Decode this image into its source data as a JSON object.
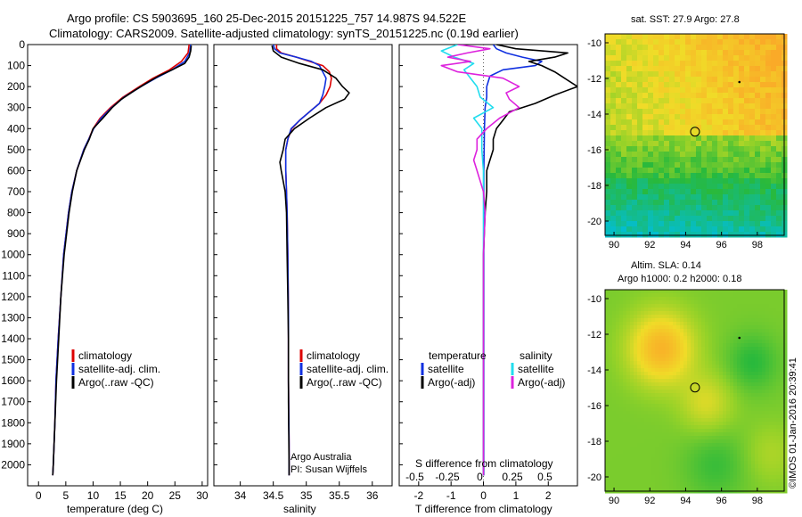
{
  "header": {
    "line1": "Argo profile: CS 5903695_160 25-Dec-2015 20151225_757 14.987S 94.522E",
    "line2": "Climatology: CARS2009. Satellite-adjusted climatology: synTS_20151225.nc (0.19d earlier)"
  },
  "depth_ticks": [
    "0",
    "100",
    "200",
    "300",
    "400",
    "500",
    "600",
    "700",
    "800",
    "900",
    "1000",
    "1100",
    "1200",
    "1300",
    "1400",
    "1500",
    "1600",
    "1700",
    "1800",
    "1900",
    "2000"
  ],
  "colors": {
    "climatology": "#dd0000",
    "satellite": "#1030e0",
    "argo": "#000000",
    "cyan": "#22ddee",
    "magenta": "#dd22dd"
  },
  "chart_data": [
    {
      "type": "line",
      "xlabel": "temperature (deg C)",
      "ylabel": "",
      "xlim": [
        -2,
        31
      ],
      "ylim": [
        2100,
        0
      ],
      "xticks": [
        "0",
        "5",
        "10",
        "15",
        "20",
        "25",
        "30"
      ],
      "legend": [
        "climatology",
        "satellite-adj. clim.",
        "Argo(..raw -QC)"
      ],
      "legend_position": "lower-left",
      "series": [
        {
          "name": "climatology",
          "color": "#dd0000",
          "depth": [
            0,
            40,
            80,
            120,
            160,
            200,
            250,
            300,
            350,
            400,
            450,
            500,
            600,
            700,
            800,
            1000,
            1200,
            1400,
            1600,
            1800,
            2000,
            2050
          ],
          "values": [
            27.6,
            27.4,
            26.2,
            24,
            21,
            18.5,
            15.5,
            13.2,
            11.3,
            10,
            9.2,
            8.3,
            7,
            6.1,
            5.5,
            4.6,
            4.1,
            3.6,
            3.2,
            3,
            2.7,
            2.6
          ]
        },
        {
          "name": "satellite-adj. clim.",
          "color": "#1030e0",
          "depth": [
            0,
            40,
            80,
            120,
            160,
            200,
            250,
            300,
            350,
            400,
            450,
            500,
            600,
            700,
            800,
            1000,
            1200,
            1400,
            1600,
            1800,
            2000,
            2050
          ],
          "values": [
            27.9,
            27.7,
            26.8,
            24.5,
            21.5,
            18.8,
            15.7,
            13.4,
            11.5,
            10.1,
            9.2,
            8.3,
            7,
            6.1,
            5.5,
            4.6,
            4.1,
            3.6,
            3.2,
            3,
            2.7,
            2.6
          ]
        },
        {
          "name": "Argo(..raw -QC)",
          "color": "#000000",
          "depth": [
            5,
            30,
            60,
            90,
            120,
            150,
            180,
            220,
            260,
            300,
            350,
            400,
            450,
            500,
            600,
            700,
            800,
            1000,
            1200,
            1400,
            1600,
            1800,
            2000,
            2050
          ],
          "values": [
            28,
            27.9,
            27.6,
            26.8,
            24.5,
            22,
            20,
            17.5,
            15.2,
            13.5,
            11.8,
            10,
            9.3,
            8.4,
            7,
            6.2,
            5.6,
            4.7,
            4.1,
            3.7,
            3.3,
            3,
            2.7,
            2.6
          ]
        }
      ]
    },
    {
      "type": "line",
      "xlabel": "salinity",
      "ylabel": "",
      "xlim": [
        33.6,
        36.3
      ],
      "ylim": [
        2100,
        0
      ],
      "xticks": [
        "34",
        "34.5",
        "35",
        "35.5",
        "36"
      ],
      "legend": [
        "climatology",
        "satellite-adj. clim.",
        "Argo(..raw -QC)"
      ],
      "legend_position": "lower-right",
      "annotations": [
        "Argo Australia",
        "PI: Susan Wijffels"
      ],
      "series": [
        {
          "name": "climatology",
          "color": "#dd0000",
          "depth": [
            0,
            20,
            40,
            60,
            80,
            100,
            130,
            160,
            200,
            240,
            280,
            320,
            360,
            400,
            450,
            500,
            600,
            700,
            800,
            1000,
            1300,
            1600,
            1900,
            2050
          ],
          "values": [
            34.55,
            34.55,
            34.62,
            34.85,
            35.05,
            35.25,
            35.35,
            35.38,
            35.36,
            35.3,
            35.2,
            35.05,
            34.9,
            34.78,
            34.72,
            34.69,
            34.69,
            34.7,
            34.71,
            34.72,
            34.73,
            34.73,
            34.74,
            34.74
          ]
        },
        {
          "name": "satellite-adj. clim.",
          "color": "#1030e0",
          "depth": [
            0,
            20,
            40,
            60,
            80,
            100,
            130,
            160,
            200,
            240,
            280,
            320,
            360,
            400,
            450,
            500,
            600,
            700,
            800,
            1000,
            1300,
            1600,
            1900,
            2050
          ],
          "values": [
            34.5,
            34.52,
            34.6,
            34.85,
            35.08,
            35.2,
            35.25,
            35.3,
            35.28,
            35.25,
            35.2,
            35.05,
            34.9,
            34.77,
            34.72,
            34.69,
            34.69,
            34.7,
            34.71,
            34.72,
            34.73,
            34.73,
            34.74,
            34.74
          ]
        },
        {
          "name": "Argo(..raw -QC)",
          "color": "#000000",
          "depth": [
            5,
            30,
            60,
            90,
            120,
            160,
            200,
            230,
            260,
            300,
            350,
            400,
            450,
            500,
            560,
            600,
            650,
            700,
            800,
            1000,
            1200,
            1400,
            1700,
            2000,
            2050
          ],
          "values": [
            34.48,
            34.5,
            34.62,
            34.9,
            35.25,
            35.45,
            35.55,
            35.65,
            35.58,
            35.3,
            35.05,
            34.82,
            34.68,
            34.65,
            34.6,
            34.62,
            34.65,
            34.68,
            34.7,
            34.71,
            34.72,
            34.73,
            34.73,
            34.74,
            34.74
          ]
        }
      ]
    },
    {
      "type": "line",
      "xlabel": "T difference from climatology",
      "xlabel_top": "S difference from climatology",
      "ylabel": "",
      "xlim": [
        -2.6,
        2.9
      ],
      "ylim": [
        2100,
        0
      ],
      "xticks": [
        "-2",
        "-1",
        "0",
        "1",
        "2"
      ],
      "xticks_top": [
        "-0.5",
        "-0.25",
        "0",
        "0.25",
        "0.5"
      ],
      "legend_groups": [
        {
          "title": "temperature",
          "items": [
            "satellite",
            "Argo(-adj)"
          ]
        },
        {
          "title": "salinity",
          "items": [
            "satellite",
            "Argo(-adj)"
          ]
        }
      ],
      "series": [
        {
          "name": "temperature satellite",
          "color": "#1030e0",
          "depth": [
            0,
            20,
            40,
            60,
            80,
            100,
            120,
            150,
            200,
            250,
            300,
            400,
            500,
            600,
            800,
            1000,
            1400,
            1800,
            2050
          ],
          "values": [
            0.3,
            0.4,
            0.7,
            1.2,
            1.8,
            1.6,
            0.6,
            0.2,
            0.1,
            0.1,
            0.05,
            0.03,
            0.02,
            0.01,
            0.01,
            0.01,
            0.01,
            0.01,
            0.01
          ]
        },
        {
          "name": "temperature Argo(-adj)",
          "color": "#000000",
          "depth": [
            0,
            20,
            40,
            60,
            80,
            100,
            130,
            160,
            200,
            240,
            280,
            320,
            360,
            400,
            450,
            500,
            550,
            600,
            700,
            800,
            1000,
            1400,
            1800,
            2050
          ],
          "values": [
            0.4,
            1,
            2.6,
            2.2,
            1.4,
            1.8,
            2.2,
            2.5,
            2.9,
            2.2,
            1.6,
            0.8,
            0.6,
            0.4,
            0.3,
            0.3,
            0.2,
            0.1,
            0.1,
            0.05,
            0,
            0,
            0,
            0
          ]
        },
        {
          "name": "salinity satellite",
          "color": "#22ddee",
          "depth": [
            0,
            30,
            60,
            90,
            120,
            160,
            200,
            250,
            300,
            350,
            400,
            500,
            600,
            800,
            1200,
            1600,
            2050
          ],
          "values": [
            -0.8,
            -1.3,
            -0.9,
            -0.3,
            -0.6,
            -0.4,
            -0.2,
            -0.1,
            0.3,
            -0.3,
            -0.05,
            -0.05,
            0,
            0,
            0,
            0,
            0
          ]
        },
        {
          "name": "salinity Argo(-adj)",
          "color": "#dd22dd",
          "depth": [
            0,
            20,
            40,
            60,
            80,
            100,
            130,
            160,
            200,
            230,
            260,
            300,
            350,
            400,
            450,
            500,
            550,
            600,
            650,
            700,
            800,
            1000,
            1400,
            1800,
            2050
          ],
          "values": [
            -0.8,
            0.2,
            -0.5,
            -1.1,
            -0.4,
            -1.3,
            -0.8,
            0.6,
            1.1,
            0.7,
            0.8,
            1.1,
            0.5,
            0.1,
            -0.2,
            -0.2,
            -0.3,
            -0.2,
            -0.1,
            0,
            0.05,
            0,
            0,
            0,
            0
          ]
        }
      ]
    },
    {
      "type": "heatmap",
      "title": "sat. SST: 27.9 Argo: 27.8",
      "xticks": [
        "90",
        "92",
        "94",
        "96",
        "98"
      ],
      "yticks": [
        "-10",
        "-12",
        "-14",
        "-16",
        "-18",
        "-20"
      ],
      "xlim": [
        89.5,
        99.5
      ],
      "ylim": [
        -20.8,
        -9.5
      ],
      "marker": {
        "lon": 94.522,
        "lat": -14.987
      }
    },
    {
      "type": "heatmap",
      "title_lines": [
        "Altim. SLA: 0.14",
        "Argo h1000: 0.2 h2000: 0.18"
      ],
      "xticks": [
        "90",
        "92",
        "94",
        "96",
        "98"
      ],
      "yticks": [
        "-10",
        "-12",
        "-14",
        "-16",
        "-18",
        "-20"
      ],
      "xlim": [
        89.5,
        99.5
      ],
      "ylim": [
        -20.8,
        -9.5
      ],
      "marker": {
        "lon": 94.522,
        "lat": -14.987
      }
    }
  ],
  "credit": "©IMOS 01-Jan-2016 20:39:41"
}
